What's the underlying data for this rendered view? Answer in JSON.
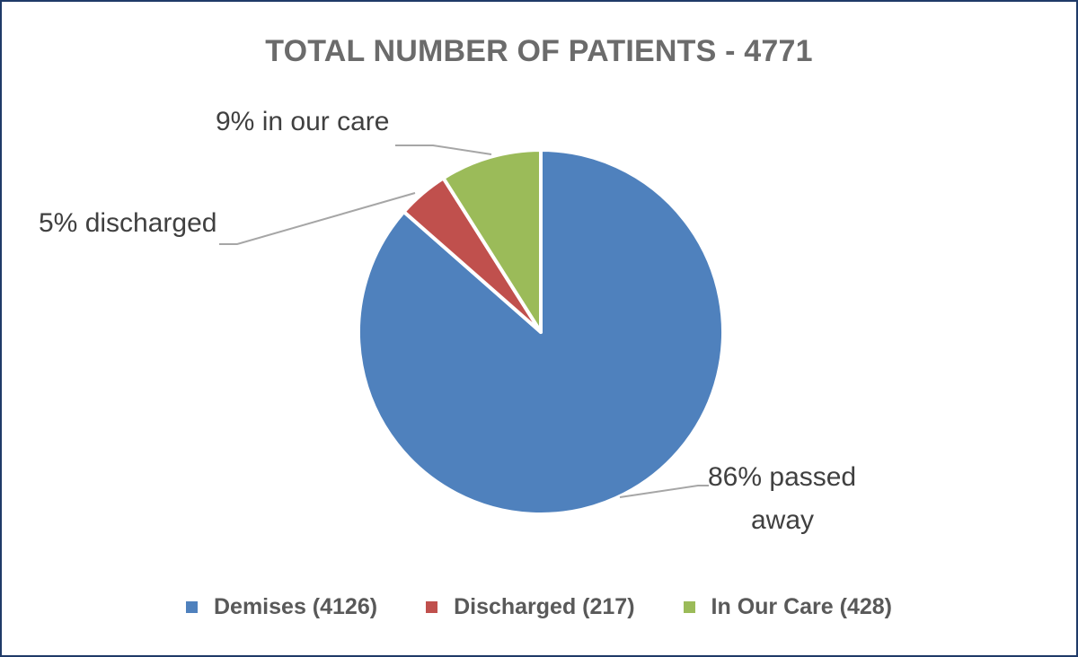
{
  "chart_data": {
    "type": "pie",
    "title": "TOTAL NUMBER OF PATIENTS - 4771",
    "slices": [
      {
        "legend": "Demises (4126)",
        "value": 4126,
        "label_line1": "86% passed",
        "label_line2": "away",
        "color": "#4F81BD"
      },
      {
        "legend": "Discharged (217)",
        "value": 217,
        "label_line1": "5% discharged",
        "label_line2": "",
        "color": "#C0504D"
      },
      {
        "legend": "In Our Care (428)",
        "value": 428,
        "label_line1": "9% in our care",
        "label_line2": "",
        "color": "#9BBB59"
      }
    ],
    "legend_position": "bottom"
  }
}
